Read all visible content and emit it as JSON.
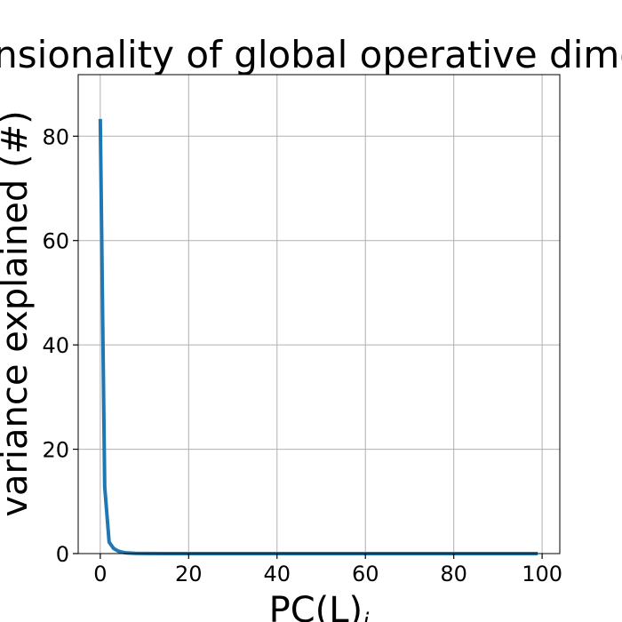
{
  "chart_data": {
    "type": "line",
    "title": "Dimensionality of global operative dimension",
    "xlabel": "PC(L)",
    "xlabel_subscript": "i",
    "ylabel": "variance explained (#)",
    "xlim": [
      -5,
      104
    ],
    "ylim": [
      0,
      91.8
    ],
    "xticks": [
      0,
      20,
      40,
      60,
      80,
      100
    ],
    "yticks": [
      0,
      20,
      40,
      60,
      80
    ],
    "grid": true,
    "series": [
      {
        "color": "#1f77b4",
        "x": [
          0,
          1,
          2,
          3,
          4,
          5,
          6,
          8,
          10,
          15,
          20,
          30,
          40,
          50,
          60,
          70,
          80,
          90,
          99
        ],
        "y": [
          83.3,
          12.8,
          2.2,
          1.0,
          0.5,
          0.25,
          0.12,
          0.05,
          0.02,
          0.01,
          0,
          0,
          0,
          0,
          0,
          0,
          0,
          0,
          0
        ]
      }
    ]
  }
}
